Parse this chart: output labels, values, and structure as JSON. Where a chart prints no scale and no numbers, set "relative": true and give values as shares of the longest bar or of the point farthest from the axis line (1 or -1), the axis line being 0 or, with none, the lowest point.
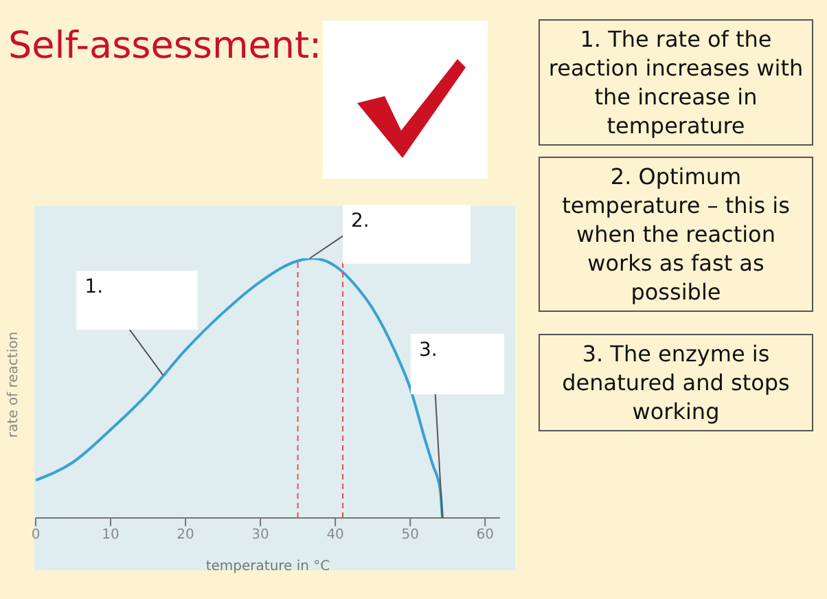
{
  "chart_data": {
    "type": "line",
    "title": "Self-assessment:",
    "xlabel": "temperature in °C",
    "ylabel": "rate of reaction",
    "relative": true,
    "x": [
      0,
      5,
      10,
      15,
      20,
      25,
      30,
      35,
      37,
      40,
      43,
      45,
      48,
      50,
      52,
      53,
      54,
      54.3
    ],
    "series": [
      {
        "color": "#3aa2cf",
        "values": [
          0.145,
          0.215,
          0.34,
          0.48,
          0.647,
          0.79,
          0.91,
          0.99,
          1,
          0.97,
          0.885,
          0.806,
          0.64,
          0.5,
          0.3,
          0.206,
          0.11,
          0
        ]
      }
    ],
    "xlim": [
      0,
      62
    ],
    "xticks": [
      0,
      10,
      20,
      30,
      40,
      50,
      60
    ],
    "ref_lines": [
      {
        "axis": "x",
        "value": 35,
        "color": "#e05050",
        "line_style": "dashed"
      },
      {
        "axis": "x",
        "value": 41,
        "color": "#e05050",
        "line_style": "dashed"
      }
    ],
    "annotations": [
      {
        "text": "1.",
        "x": 17,
        "y": 0.55
      },
      {
        "text": "2.",
        "x": 36.6,
        "y": 1
      },
      {
        "text": "3.",
        "x": 54.3,
        "y": 0
      },
      "1. The rate of the reaction increases with the increase in temperature",
      "2. Optimum temperature – this is when the reaction works as fast as possible",
      "3. The enzyme is denatured and stops working"
    ]
  }
}
